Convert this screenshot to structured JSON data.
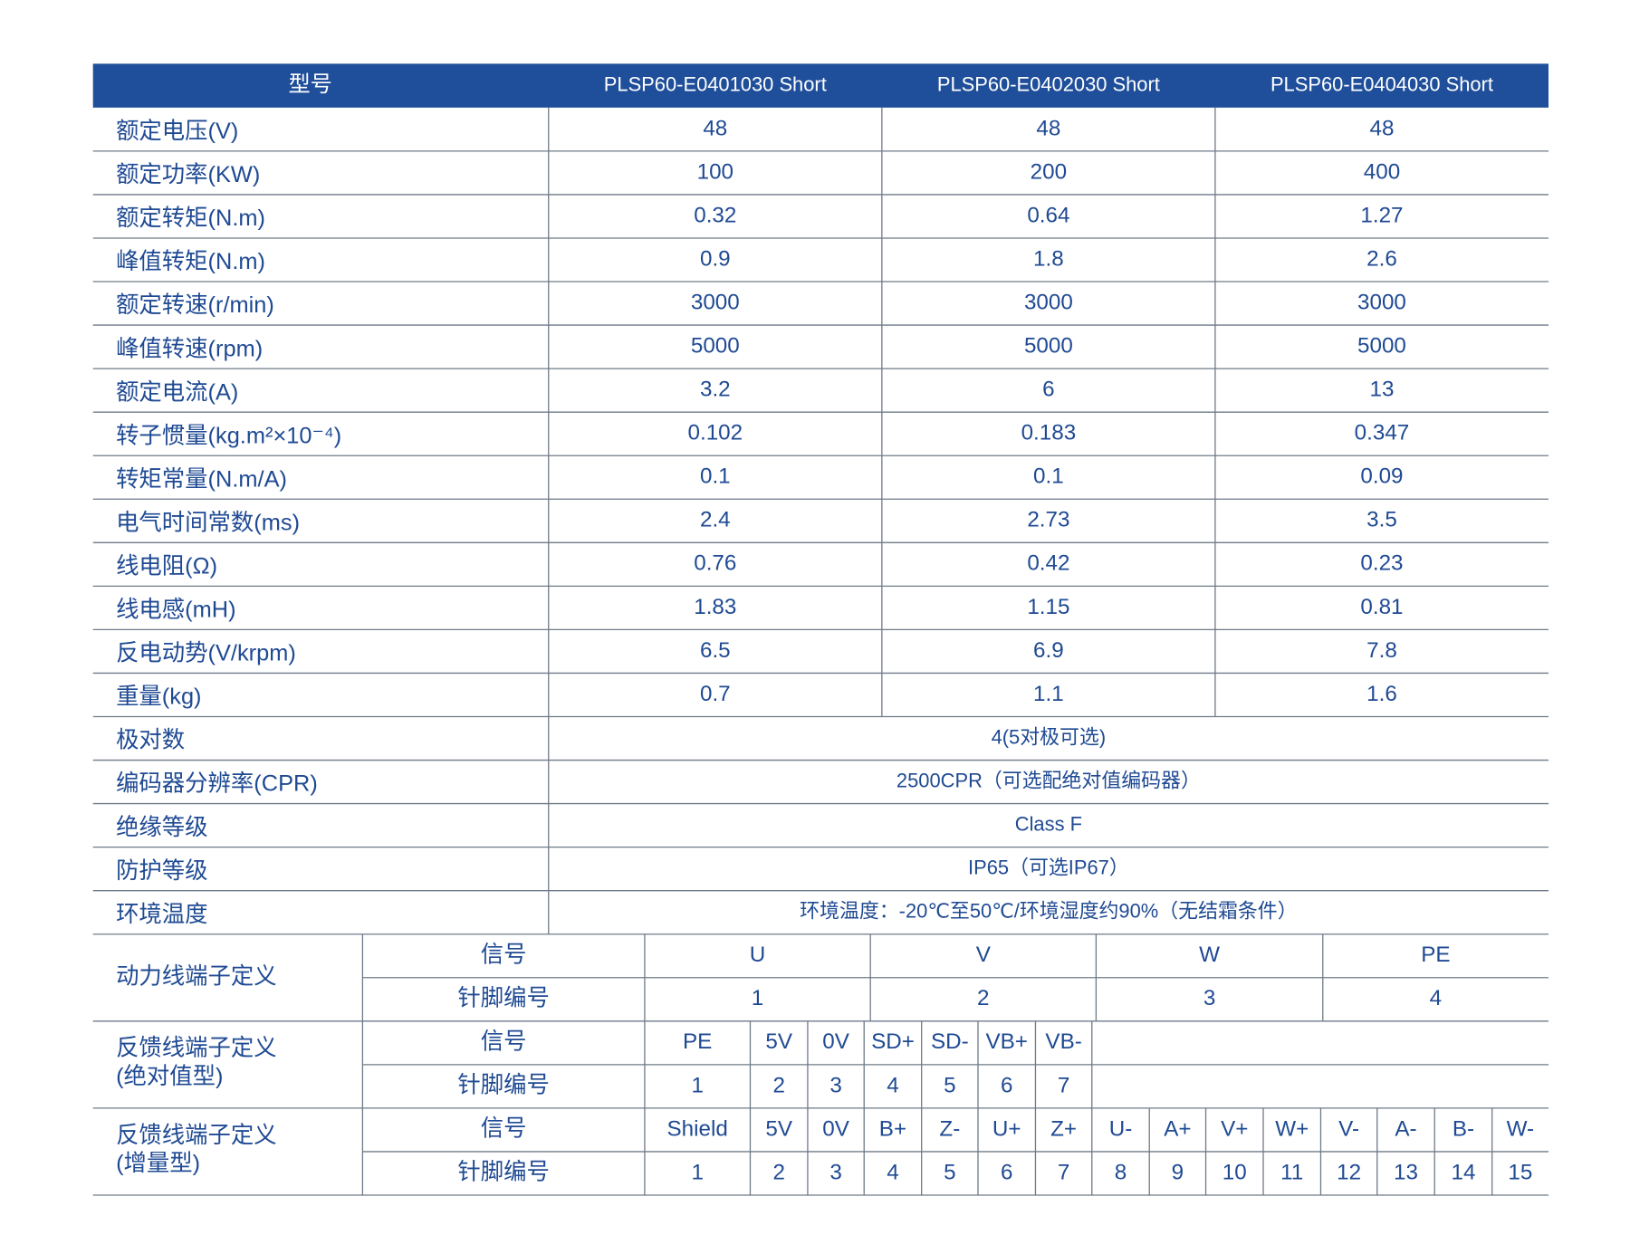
{
  "header": {
    "label": "型号",
    "models": [
      "PLSP60-E0401030 Short",
      "PLSP60-E0402030 Short",
      "PLSP60-E0404030 Short"
    ]
  },
  "spec_rows": [
    {
      "label": "额定电压(V)",
      "values": [
        "48",
        "48",
        "48"
      ]
    },
    {
      "label": "额定功率(KW)",
      "values": [
        "100",
        "200",
        "400"
      ]
    },
    {
      "label": "额定转矩(N.m)",
      "values": [
        "0.32",
        "0.64",
        "1.27"
      ]
    },
    {
      "label": "峰值转矩(N.m)",
      "values": [
        "0.9",
        "1.8",
        "2.6"
      ]
    },
    {
      "label": "额定转速(r/min)",
      "values": [
        "3000",
        "3000",
        "3000"
      ]
    },
    {
      "label": "峰值转速(rpm)",
      "values": [
        "5000",
        "5000",
        "5000"
      ]
    },
    {
      "label": "额定电流(A)",
      "values": [
        "3.2",
        "6",
        "13"
      ]
    },
    {
      "label": "转子惯量(kg.m²×10⁻⁴)",
      "values": [
        "0.102",
        "0.183",
        "0.347"
      ]
    },
    {
      "label": "转矩常量(N.m/A)",
      "values": [
        "0.1",
        "0.1",
        "0.09"
      ]
    },
    {
      "label": "电气时间常数(ms)",
      "values": [
        "2.4",
        "2.73",
        "3.5"
      ]
    },
    {
      "label": "线电阻(Ω)",
      "values": [
        "0.76",
        "0.42",
        "0.23"
      ]
    },
    {
      "label": "线电感(mH)",
      "values": [
        "1.83",
        "1.15",
        "0.81"
      ]
    },
    {
      "label": "反电动势(V/krpm)",
      "values": [
        "6.5",
        "6.9",
        "7.8"
      ]
    },
    {
      "label": "重量(kg)",
      "values": [
        "0.7",
        "1.1",
        "1.6"
      ]
    }
  ],
  "merged_rows": [
    {
      "label": "极对数",
      "value": "4(5对极可选)"
    },
    {
      "label": "编码器分辨率(CPR)",
      "value": "2500CPR（可选配绝对值编码器）"
    },
    {
      "label": "绝缘等级",
      "value": "Class F"
    },
    {
      "label": "防护等级",
      "value": "IP65（可选IP67）"
    },
    {
      "label": "环境温度",
      "value": "环境温度：-20℃至50℃/环境湿度约90%（无结霜条件）"
    }
  ],
  "terminals": [
    {
      "label_lines": [
        "动力线端子定义"
      ],
      "rows": [
        {
          "label": "信号",
          "cells": [
            "U",
            "V",
            "W",
            "PE"
          ]
        },
        {
          "label": "针脚编号",
          "cells": [
            "1",
            "2",
            "3",
            "4"
          ]
        }
      ]
    },
    {
      "label_lines": [
        "反馈线端子定义",
        "(绝对值型)"
      ],
      "rows": [
        {
          "label": "信号",
          "cells": [
            "PE",
            "5V",
            "0V",
            "SD+",
            "SD-",
            "VB+",
            "VB-"
          ]
        },
        {
          "label": "针脚编号",
          "cells": [
            "1",
            "2",
            "3",
            "4",
            "5",
            "6",
            "7"
          ]
        }
      ]
    },
    {
      "label_lines": [
        "反馈线端子定义",
        "(增量型)"
      ],
      "rows": [
        {
          "label": "信号",
          "cells": [
            "Shield",
            "5V",
            "0V",
            "B+",
            "Z-",
            "U+",
            "Z+",
            "U-",
            "A+",
            "V+",
            "W+",
            "V-",
            "A-",
            "B-",
            "W-"
          ]
        },
        {
          "label": "针脚编号",
          "cells": [
            "1",
            "2",
            "3",
            "4",
            "5",
            "6",
            "7",
            "8",
            "9",
            "10",
            "11",
            "12",
            "13",
            "14",
            "15"
          ]
        }
      ]
    }
  ]
}
